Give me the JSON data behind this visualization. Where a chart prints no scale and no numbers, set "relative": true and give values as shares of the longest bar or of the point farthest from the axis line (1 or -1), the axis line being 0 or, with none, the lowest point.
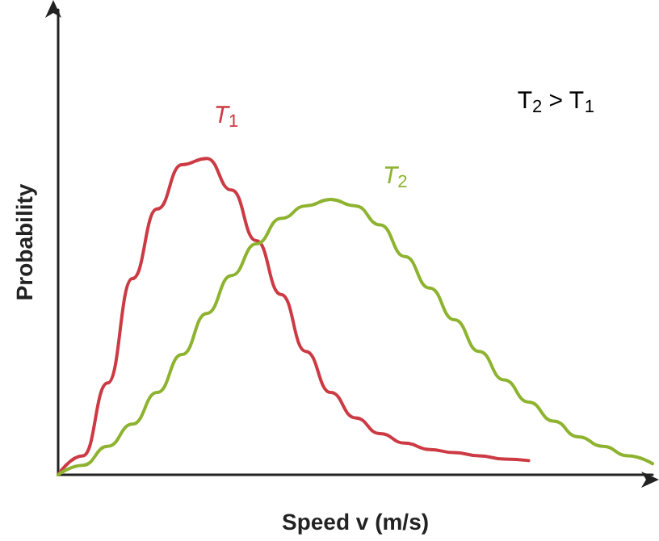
{
  "chart_data": {
    "type": "line",
    "relative": true,
    "xlabel": "Speed v (m/s)",
    "ylabel": "Probability",
    "grid": false,
    "legend": false,
    "marker": "none",
    "line_style": "solid",
    "categories": [
      null,
      null,
      null,
      null,
      null,
      null,
      null,
      null,
      null,
      null,
      null,
      null,
      null,
      null,
      null,
      null,
      null,
      null,
      null,
      null,
      null,
      null,
      null,
      null,
      null
    ],
    "annotations": [
      "T$_{2}$ > T$_{1}$"
    ],
    "series": [
      {
        "name": "T$_{1}$",
        "color": "#cc3a44",
        "values": [
          0,
          0.06,
          0.29,
          0.62,
          0.84,
          0.98,
          1,
          0.9,
          0.74,
          0.57,
          0.39,
          0.26,
          0.18,
          0.13,
          0.1,
          0.08,
          0.07,
          0.06,
          0.05,
          0.045,
          null,
          null,
          null,
          null,
          null
        ]
      },
      {
        "name": "T$_{2}$",
        "color": "#8db32f",
        "values": [
          0,
          0.03,
          0.09,
          0.16,
          0.26,
          0.38,
          0.51,
          0.63,
          0.73,
          0.81,
          0.85,
          0.87,
          0.85,
          0.79,
          0.69,
          0.59,
          0.49,
          0.39,
          0.3,
          0.23,
          0.17,
          0.12,
          0.09,
          0.06,
          0.035
        ]
      }
    ]
  }
}
